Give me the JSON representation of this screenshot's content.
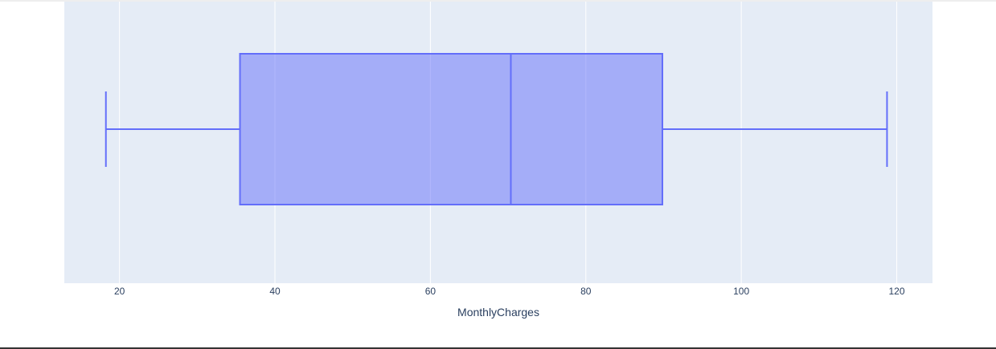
{
  "chart_data": {
    "type": "box",
    "orientation": "horizontal",
    "xlabel": "MonthlyCharges",
    "xlim": [
      12.9,
      124.6
    ],
    "xticks": [
      20,
      40,
      60,
      80,
      100,
      120
    ],
    "xtick_labels": [
      "20",
      "40",
      "60",
      "80",
      "100",
      "120"
    ],
    "grid": true,
    "box": {
      "min": 18.25,
      "q1": 35.5,
      "median": 70.35,
      "q3": 89.85,
      "max": 118.75
    },
    "colors": {
      "plot_background": "#e5ecf6",
      "gridline": "#ffffff",
      "box_line": "#636efa",
      "box_fill": "#636efa",
      "tick_text": "#2a3f5f"
    }
  }
}
